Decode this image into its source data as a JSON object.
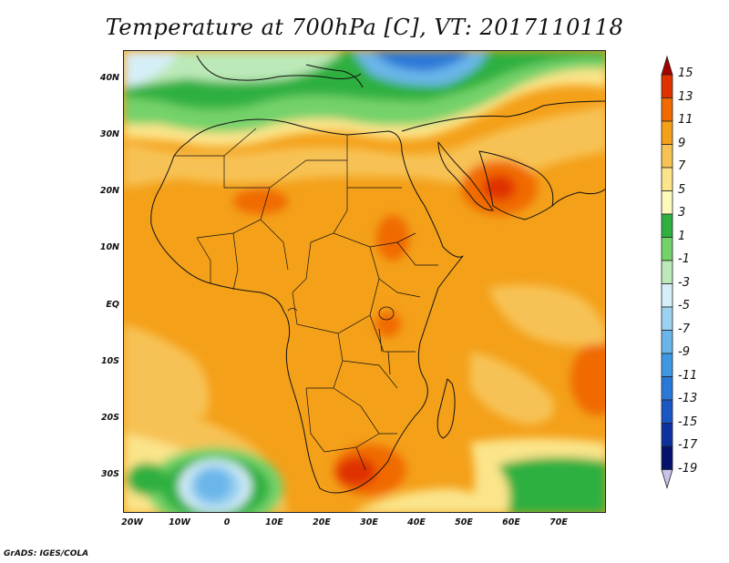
{
  "title": "Temperature at 700hPa [C], VT: 2017110118",
  "credit": "GrADS: IGES/COLA",
  "lat_ticks": [
    "40N",
    "30N",
    "20N",
    "10N",
    "EQ",
    "10S",
    "20S",
    "30S"
  ],
  "lon_ticks": [
    "20W",
    "10W",
    "0",
    "10E",
    "20E",
    "30E",
    "40E",
    "50E",
    "60E",
    "70E"
  ],
  "colorbar": {
    "labels": [
      "15",
      "13",
      "11",
      "9",
      "7",
      "5",
      "3",
      "1",
      "-1",
      "-3",
      "-5",
      "-7",
      "-9",
      "-11",
      "-13",
      "-15",
      "-17",
      "-19"
    ],
    "colors": [
      "#a50000",
      "#e03200",
      "#f06a00",
      "#f4a019",
      "#f7c254",
      "#fbe48a",
      "#fdf8bc",
      "#2fb040",
      "#74d26a",
      "#bce9b8",
      "#d6eef8",
      "#9cd2f0",
      "#6ab6ea",
      "#3f98e4",
      "#2a78d8",
      "#1a56c4",
      "#0d32a0",
      "#05126b",
      "#c8c2ea"
    ],
    "units": "C"
  }
}
